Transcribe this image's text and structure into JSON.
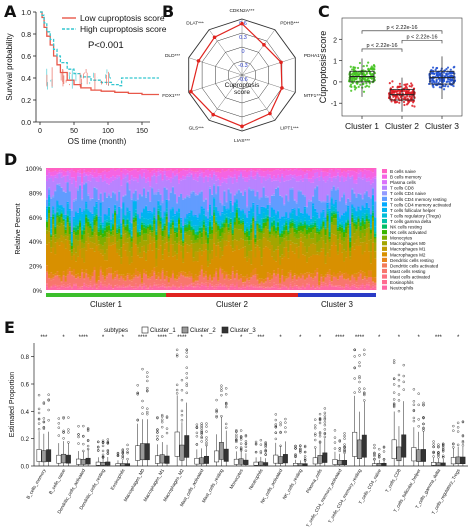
{
  "letters": {
    "a": "A",
    "b": "B",
    "c": "C",
    "d": "D",
    "e": "E"
  },
  "panelA": {
    "ylabel": "Survival probability",
    "xlabel": "OS time (month)",
    "yticks": [
      "0.0",
      "0.2",
      "0.4",
      "0.6",
      "0.8",
      "1.0"
    ],
    "xticks": [
      "0",
      "50",
      "100",
      "150"
    ],
    "legend": [
      {
        "label": "Low cuproptosis score",
        "color": "#e8584a"
      },
      {
        "label": "High cuproptosis score",
        "color": "#34c6cf"
      }
    ],
    "pvalue": "P<0.001"
  },
  "panelB": {
    "center_title": [
      "Cuproptosis",
      "score"
    ],
    "axes": [
      "CDKN2A***",
      "PDHB***",
      "PDHA1***",
      "MTF1***",
      "LIPT1***",
      "LIAS***",
      "GLS***",
      "FDX1***",
      "DLD***",
      "DLAT***"
    ],
    "rings": [
      "0.6",
      "0.3",
      "0",
      "-0.3",
      "-0.6"
    ],
    "values": [
      0.5,
      0.2,
      0.28,
      0.3,
      0.42,
      0.5,
      0.45,
      0.55,
      0.38,
      0.4
    ]
  },
  "panelC": {
    "ylabel": "Cuproptosis score",
    "yticks": [
      "-1",
      "0",
      "1",
      "2"
    ],
    "categories": [
      "Cluster 1",
      "Cluster 2",
      "Cluster 3"
    ],
    "colors": [
      "#43c21e",
      "#dd1a22",
      "#1f4fd1"
    ],
    "pvals": [
      "p < 2.22e-16",
      "p < 2.22e-16",
      "p < 2.22e-16"
    ]
  },
  "panelD": {
    "ylabel": "Relative Percent",
    "yticks": [
      "0%",
      "20%",
      "40%",
      "60%",
      "80%",
      "100%"
    ],
    "clusters": [
      {
        "label": "Cluster 1",
        "color": "#3bbf2b"
      },
      {
        "label": "Cluster 2",
        "color": "#e0241f"
      },
      {
        "label": "Cluster 3",
        "color": "#2a3bc6"
      }
    ],
    "legend": [
      {
        "label": "B cells naive",
        "color": "#ff61c3"
      },
      {
        "label": "B cells memory",
        "color": "#f564e3"
      },
      {
        "label": "Plasma cells",
        "color": "#db72fb"
      },
      {
        "label": "T cells CD8",
        "color": "#b983ff"
      },
      {
        "label": "T cells CD4 naive",
        "color": "#939aff"
      },
      {
        "label": "T cells CD4 memory resting",
        "color": "#619cff"
      },
      {
        "label": "T cells CD4 memory activated",
        "color": "#00a9ff"
      },
      {
        "label": "T cells follicular helper",
        "color": "#00b4ef"
      },
      {
        "label": "T cells regulatory (Tregs)",
        "color": "#00bcd8"
      },
      {
        "label": "T cells gamma delta",
        "color": "#00c1a7"
      },
      {
        "label": "NK cells resting",
        "color": "#00be67"
      },
      {
        "label": "NK cells activated",
        "color": "#39b600"
      },
      {
        "label": "Monocytes",
        "color": "#7cae00"
      },
      {
        "label": "Macrophages M0",
        "color": "#a3a500"
      },
      {
        "label": "Macrophages M1",
        "color": "#c09b00"
      },
      {
        "label": "Macrophages M2",
        "color": "#d89000"
      },
      {
        "label": "Dendritic cells resting",
        "color": "#e7861b"
      },
      {
        "label": "Dendritic cells activated",
        "color": "#f37b59"
      },
      {
        "label": "Mast cells resting",
        "color": "#f8766d"
      },
      {
        "label": "Mast cells activated",
        "color": "#fc717f"
      },
      {
        "label": "Eosinophils",
        "color": "#ff6c91"
      },
      {
        "label": "Neutrophils",
        "color": "#ff67a4"
      }
    ]
  },
  "panelE": {
    "legend_title": "subtypes",
    "legend": [
      {
        "label": "Cluster_1",
        "fill": "#ffffff"
      },
      {
        "label": "Cluster_2",
        "fill": "#9a9a9a"
      },
      {
        "label": "Cluster_3",
        "fill": "#333333"
      }
    ],
    "ylabel": "Estimated Proportion",
    "yticks": [
      "0.0",
      "0.2",
      "0.4",
      "0.6",
      "0.8"
    ],
    "cells": [
      "B_cells_memory",
      "B_cells_naive",
      "Dendritic_cells_activated",
      "Dendritic_cells_resting",
      "Eosinophils",
      "Macrophages_M0",
      "Macrophages_M1",
      "Macrophages_M2",
      "Mast_cells_activated",
      "Mast_cells_resting",
      "Monocytes",
      "Neutrophils",
      "NK_cells_activated",
      "NK_cells_resting",
      "Plasma_cells",
      "T_cells_CD4_memory_activated",
      "T_cells_CD4_memory_resting",
      "T_cells_CD4_naive",
      "T_cells_CD8",
      "T_cells_follicular_helper",
      "T_cells_gamma_delta",
      "T_cells_regulatory_Tregs"
    ],
    "sig": [
      "***",
      "*",
      "****",
      "*",
      "*",
      "****",
      "****",
      "****",
      "*",
      "*",
      "*",
      "***",
      "*",
      "*",
      "*",
      "****",
      "****",
      "*",
      "*",
      "*",
      "***",
      "*"
    ]
  }
}
